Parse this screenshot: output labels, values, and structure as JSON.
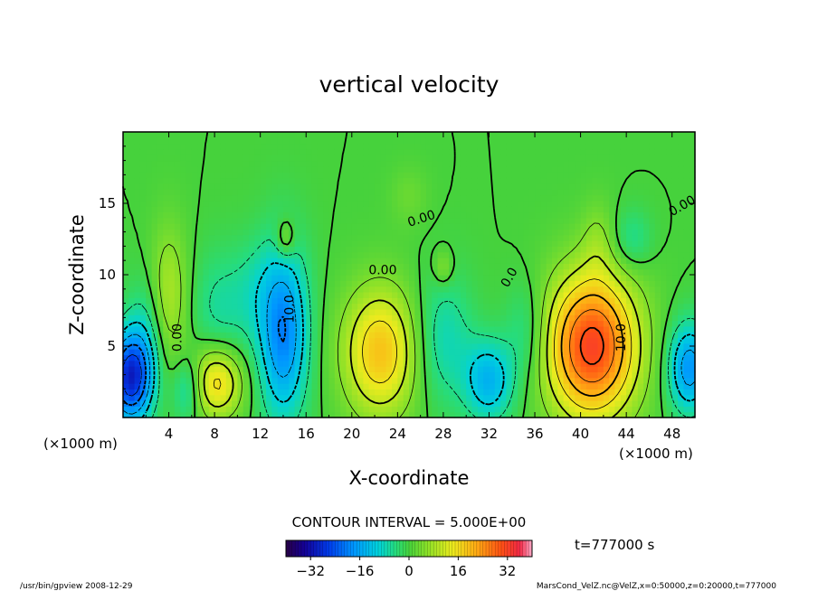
{
  "chart_data": {
    "type": "heatmap",
    "title": "vertical velocity",
    "xlabel": "X-coordinate",
    "ylabel": "Z-coordinate",
    "x_unit_left": "(×1000 m)",
    "x_unit_right": "(×1000 m)",
    "xlim": [
      0,
      50
    ],
    "ylim": [
      0,
      20
    ],
    "xticks": [
      4,
      8,
      12,
      16,
      20,
      24,
      28,
      32,
      36,
      40,
      44,
      48
    ],
    "yticks": [
      5,
      10,
      15
    ],
    "contour_interval_text": "CONTOUR INTERVAL = 5.000E+00",
    "time_text": "t=777000 s",
    "colorbar": {
      "range": [
        -40,
        40
      ],
      "ticks": [
        -32,
        -16,
        0,
        16,
        32
      ],
      "tick_labels": [
        "−32",
        "−16",
        "0",
        "16",
        "32"
      ]
    },
    "contour_labels": [
      {
        "text": "10.0",
        "x": 14.6,
        "y": 7.6,
        "rotate": -90
      },
      {
        "text": "0.00",
        "x": 4.8,
        "y": 5.6,
        "rotate": -90
      },
      {
        "text": "10.0",
        "x": 43.6,
        "y": 5.6,
        "rotate": -90
      },
      {
        "text": "0.00",
        "x": 22.7,
        "y": 10.3,
        "rotate": 0
      },
      {
        "text": "0.00",
        "x": 26.1,
        "y": 13.9,
        "rotate": -18
      },
      {
        "text": "0.0",
        "x": 33.8,
        "y": 9.8,
        "rotate": -60
      },
      {
        "text": "0.00",
        "x": 48.9,
        "y": 14.8,
        "rotate": -30
      }
    ],
    "features": [
      {
        "x": 0.6,
        "y": 2.8,
        "sx": 1.3,
        "sy": 2.2,
        "amp": -28
      },
      {
        "x": 2.0,
        "y": 5.5,
        "sx": 1.2,
        "sy": 3.0,
        "amp": -7
      },
      {
        "x": 4.0,
        "y": 8.5,
        "sx": 1.2,
        "sy": 3.5,
        "amp": 9
      },
      {
        "x": 5.6,
        "y": 2.0,
        "sx": 0.9,
        "sy": 1.6,
        "amp": -9
      },
      {
        "x": 8.2,
        "y": 2.5,
        "sx": 1.6,
        "sy": 1.8,
        "amp": 17
      },
      {
        "x": 8.5,
        "y": 7.5,
        "sx": 1.8,
        "sy": 3.0,
        "amp": -6
      },
      {
        "x": 11.5,
        "y": 9.0,
        "sx": 1.4,
        "sy": 2.5,
        "amp": -4
      },
      {
        "x": 14.0,
        "y": 6.0,
        "sx": 1.5,
        "sy": 4.2,
        "amp": -20
      },
      {
        "x": 14.2,
        "y": 12.5,
        "sx": 0.6,
        "sy": 1.0,
        "amp": 8
      },
      {
        "x": 22.5,
        "y": 4.6,
        "sx": 2.3,
        "sy": 3.2,
        "amp": 19
      },
      {
        "x": 28.0,
        "y": 5.5,
        "sx": 1.8,
        "sy": 3.2,
        "amp": -8
      },
      {
        "x": 28.0,
        "y": 10.5,
        "sx": 0.6,
        "sy": 0.9,
        "amp": 6
      },
      {
        "x": 32.0,
        "y": 2.6,
        "sx": 1.5,
        "sy": 2.0,
        "amp": -14
      },
      {
        "x": 35.2,
        "y": 6.0,
        "sx": 1.3,
        "sy": 2.5,
        "amp": -6
      },
      {
        "x": 41.0,
        "y": 5.0,
        "sx": 2.8,
        "sy": 3.6,
        "amp": 32
      },
      {
        "x": 41.5,
        "y": 12.5,
        "sx": 1.0,
        "sy": 2.0,
        "amp": 4
      },
      {
        "x": 49.5,
        "y": 3.5,
        "sx": 1.3,
        "sy": 2.2,
        "amp": -18
      },
      {
        "x": 44.5,
        "y": 12.5,
        "sx": 1.2,
        "sy": 1.5,
        "amp": -6
      },
      {
        "x": 25.0,
        "y": 15.5,
        "sx": 1.2,
        "sy": 1.5,
        "amp": 3
      }
    ]
  },
  "footer": {
    "left": "/usr/bin/gpview   2008-12-29",
    "right": "MarsCond_VelZ.nc@VelZ,x=0:50000,z=0:20000,t=777000"
  }
}
